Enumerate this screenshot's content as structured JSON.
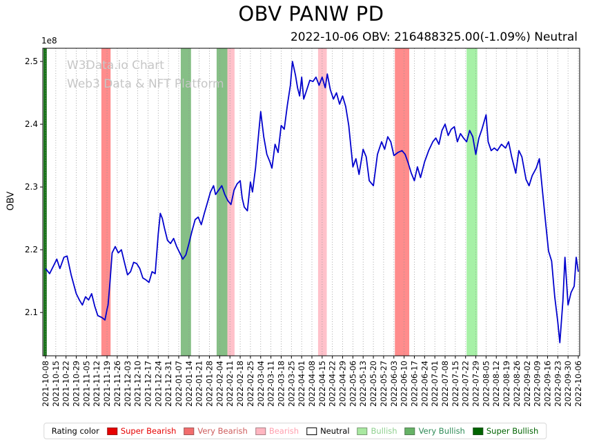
{
  "watermark": {
    "line1": "W3Data.io Chart",
    "line2": "Web3 Data & NFT Platform"
  },
  "chart_data": {
    "type": "line",
    "title": "OBV PANW PD",
    "subtitle": "2022-10-06 OBV: 216488325.00(-1.09%) Neutral",
    "ylabel": "OBV",
    "y_offset_label": "1e8",
    "unit_multiplier": 100000000,
    "ylim_1e8": [
      2.031,
      2.521
    ],
    "y_ticks": [
      2.1,
      2.2,
      2.3,
      2.4,
      2.5
    ],
    "grid": "vertical-dotted",
    "line_color": "#0000cd",
    "x_tick_labels": [
      "2021-10-08",
      "2021-10-15",
      "2021-10-22",
      "2021-10-29",
      "2021-11-05",
      "2021-11-12",
      "2021-11-19",
      "2021-11-26",
      "2021-12-03",
      "2021-12-10",
      "2021-12-17",
      "2021-12-24",
      "2021-12-31",
      "2022-01-07",
      "2022-01-14",
      "2022-01-21",
      "2022-01-28",
      "2022-02-04",
      "2022-02-11",
      "2022-02-18",
      "2022-02-25",
      "2022-03-04",
      "2022-03-11",
      "2022-03-18",
      "2022-03-25",
      "2022-04-01",
      "2022-04-08",
      "2022-04-15",
      "2022-04-22",
      "2022-04-29",
      "2022-05-06",
      "2022-05-13",
      "2022-05-20",
      "2022-05-27",
      "2022-06-03",
      "2022-06-10",
      "2022-06-17",
      "2022-06-24",
      "2022-07-01",
      "2022-07-08",
      "2022-07-15",
      "2022-07-22",
      "2022-07-29",
      "2022-08-05",
      "2022-08-12",
      "2022-08-19",
      "2022-08-26",
      "2022-09-02",
      "2022-09-09",
      "2022-09-16",
      "2022-09-23",
      "2022-09-30",
      "2022-10-06"
    ],
    "series": [
      {
        "name": "OBV",
        "points_week_value_1e8": [
          [
            0,
            2.17
          ],
          [
            0.4,
            2.162
          ],
          [
            0.8,
            2.175
          ],
          [
            1.1,
            2.185
          ],
          [
            1.4,
            2.17
          ],
          [
            1.8,
            2.188
          ],
          [
            2.1,
            2.19
          ],
          [
            2.5,
            2.16
          ],
          [
            3.0,
            2.13
          ],
          [
            3.3,
            2.12
          ],
          [
            3.6,
            2.112
          ],
          [
            3.9,
            2.125
          ],
          [
            4.2,
            2.12
          ],
          [
            4.5,
            2.13
          ],
          [
            4.8,
            2.11
          ],
          [
            5.1,
            2.095
          ],
          [
            5.5,
            2.092
          ],
          [
            5.8,
            2.088
          ],
          [
            6.0,
            2.105
          ],
          [
            6.1,
            2.112
          ],
          [
            6.3,
            2.15
          ],
          [
            6.5,
            2.195
          ],
          [
            6.8,
            2.205
          ],
          [
            7.1,
            2.195
          ],
          [
            7.4,
            2.2
          ],
          [
            7.7,
            2.18
          ],
          [
            8.0,
            2.16
          ],
          [
            8.3,
            2.165
          ],
          [
            8.6,
            2.18
          ],
          [
            8.9,
            2.178
          ],
          [
            9.2,
            2.17
          ],
          [
            9.5,
            2.155
          ],
          [
            9.8,
            2.152
          ],
          [
            10.1,
            2.148
          ],
          [
            10.4,
            2.165
          ],
          [
            10.7,
            2.162
          ],
          [
            11.0,
            2.225
          ],
          [
            11.2,
            2.258
          ],
          [
            11.4,
            2.25
          ],
          [
            11.6,
            2.235
          ],
          [
            11.9,
            2.215
          ],
          [
            12.2,
            2.21
          ],
          [
            12.5,
            2.218
          ],
          [
            12.8,
            2.205
          ],
          [
            13.1,
            2.195
          ],
          [
            13.4,
            2.185
          ],
          [
            13.7,
            2.192
          ],
          [
            14.0,
            2.21
          ],
          [
            14.3,
            2.23
          ],
          [
            14.6,
            2.248
          ],
          [
            14.9,
            2.252
          ],
          [
            15.2,
            2.24
          ],
          [
            15.5,
            2.258
          ],
          [
            15.8,
            2.275
          ],
          [
            16.1,
            2.292
          ],
          [
            16.4,
            2.302
          ],
          [
            16.6,
            2.288
          ],
          [
            16.9,
            2.295
          ],
          [
            17.2,
            2.302
          ],
          [
            17.5,
            2.288
          ],
          [
            17.8,
            2.278
          ],
          [
            18.1,
            2.272
          ],
          [
            18.4,
            2.295
          ],
          [
            18.7,
            2.305
          ],
          [
            19.0,
            2.31
          ],
          [
            19.2,
            2.282
          ],
          [
            19.4,
            2.268
          ],
          [
            19.7,
            2.262
          ],
          [
            20.0,
            2.308
          ],
          [
            20.2,
            2.292
          ],
          [
            20.5,
            2.33
          ],
          [
            20.8,
            2.385
          ],
          [
            21.0,
            2.42
          ],
          [
            21.3,
            2.38
          ],
          [
            21.6,
            2.352
          ],
          [
            21.9,
            2.34
          ],
          [
            22.1,
            2.33
          ],
          [
            22.4,
            2.368
          ],
          [
            22.7,
            2.355
          ],
          [
            23.0,
            2.398
          ],
          [
            23.3,
            2.392
          ],
          [
            23.6,
            2.43
          ],
          [
            23.9,
            2.462
          ],
          [
            24.1,
            2.5
          ],
          [
            24.4,
            2.478
          ],
          [
            24.6,
            2.458
          ],
          [
            24.8,
            2.445
          ],
          [
            25.0,
            2.475
          ],
          [
            25.2,
            2.44
          ],
          [
            25.5,
            2.455
          ],
          [
            25.8,
            2.47
          ],
          [
            26.1,
            2.468
          ],
          [
            26.4,
            2.475
          ],
          [
            26.7,
            2.462
          ],
          [
            27.0,
            2.475
          ],
          [
            27.3,
            2.458
          ],
          [
            27.5,
            2.48
          ],
          [
            27.8,
            2.455
          ],
          [
            28.1,
            2.44
          ],
          [
            28.4,
            2.45
          ],
          [
            28.7,
            2.432
          ],
          [
            29.0,
            2.445
          ],
          [
            29.3,
            2.428
          ],
          [
            29.6,
            2.398
          ],
          [
            30.0,
            2.332
          ],
          [
            30.3,
            2.345
          ],
          [
            30.6,
            2.32
          ],
          [
            31.0,
            2.36
          ],
          [
            31.3,
            2.348
          ],
          [
            31.6,
            2.31
          ],
          [
            32.0,
            2.302
          ],
          [
            32.4,
            2.352
          ],
          [
            32.8,
            2.372
          ],
          [
            33.1,
            2.36
          ],
          [
            33.4,
            2.38
          ],
          [
            33.7,
            2.372
          ],
          [
            34.0,
            2.35
          ],
          [
            34.4,
            2.355
          ],
          [
            34.8,
            2.358
          ],
          [
            35.1,
            2.352
          ],
          [
            35.4,
            2.338
          ],
          [
            35.7,
            2.322
          ],
          [
            36.0,
            2.31
          ],
          [
            36.3,
            2.332
          ],
          [
            36.6,
            2.315
          ],
          [
            37.0,
            2.34
          ],
          [
            37.4,
            2.358
          ],
          [
            37.8,
            2.372
          ],
          [
            38.1,
            2.378
          ],
          [
            38.4,
            2.368
          ],
          [
            38.7,
            2.39
          ],
          [
            39.0,
            2.4
          ],
          [
            39.3,
            2.382
          ],
          [
            39.6,
            2.392
          ],
          [
            39.9,
            2.396
          ],
          [
            40.2,
            2.372
          ],
          [
            40.5,
            2.385
          ],
          [
            40.8,
            2.378
          ],
          [
            41.1,
            2.372
          ],
          [
            41.4,
            2.39
          ],
          [
            41.7,
            2.38
          ],
          [
            42.0,
            2.352
          ],
          [
            42.3,
            2.378
          ],
          [
            42.6,
            2.392
          ],
          [
            43.0,
            2.415
          ],
          [
            43.2,
            2.372
          ],
          [
            43.5,
            2.358
          ],
          [
            43.8,
            2.362
          ],
          [
            44.1,
            2.358
          ],
          [
            44.5,
            2.368
          ],
          [
            44.9,
            2.362
          ],
          [
            45.2,
            2.372
          ],
          [
            45.5,
            2.348
          ],
          [
            45.9,
            2.322
          ],
          [
            46.2,
            2.358
          ],
          [
            46.5,
            2.348
          ],
          [
            46.9,
            2.312
          ],
          [
            47.2,
            2.302
          ],
          [
            47.5,
            2.318
          ],
          [
            47.9,
            2.33
          ],
          [
            48.2,
            2.345
          ],
          [
            48.5,
            2.295
          ],
          [
            48.8,
            2.245
          ],
          [
            49.1,
            2.198
          ],
          [
            49.4,
            2.182
          ],
          [
            49.7,
            2.125
          ],
          [
            50.0,
            2.085
          ],
          [
            50.2,
            2.052
          ],
          [
            50.5,
            2.118
          ],
          [
            50.7,
            2.188
          ],
          [
            51.0,
            2.112
          ],
          [
            51.3,
            2.132
          ],
          [
            51.6,
            2.142
          ],
          [
            51.8,
            2.188
          ],
          [
            52.0,
            2.165
          ]
        ]
      }
    ],
    "bands": [
      {
        "rating": "super_bullish",
        "start_week": -0.2,
        "end_week": 0.12
      },
      {
        "rating": "very_bearish",
        "start_week": 5.45,
        "end_week": 6.35
      },
      {
        "rating": "very_bullish",
        "start_week": 13.2,
        "end_week": 14.2
      },
      {
        "rating": "very_bullish",
        "start_week": 16.7,
        "end_week": 17.75
      },
      {
        "rating": "bearish",
        "start_week": 17.75,
        "end_week": 18.45
      },
      {
        "rating": "bearish",
        "start_week": 26.6,
        "end_week": 27.45
      },
      {
        "rating": "very_bearish",
        "start_week": 34.1,
        "end_week": 35.5
      },
      {
        "rating": "bullish",
        "start_week": 41.1,
        "end_week": 42.15
      }
    ],
    "band_colors": {
      "super_bearish": {
        "fill": "#e60000",
        "opacity": 0.9
      },
      "very_bearish": {
        "fill": "#ff1a1a",
        "opacity": 0.5
      },
      "bearish": {
        "fill": "#ffb6c1",
        "opacity": 0.85
      },
      "bullish": {
        "fill": "#90ee90",
        "opacity": 0.8
      },
      "very_bullish": {
        "fill": "#228b22",
        "opacity": 0.55
      },
      "super_bullish": {
        "fill": "#006400",
        "opacity": 0.9
      }
    },
    "legend": {
      "label": "Rating color",
      "items": [
        {
          "label": "Super Bearish",
          "color": "#e60000",
          "text_color": "#e60000"
        },
        {
          "label": "Very Bearish",
          "color": "#f26d6d",
          "text_color": "#cd5c5c"
        },
        {
          "label": "Bearish",
          "color": "#ffb6c1",
          "text_color": "#ff9fae"
        },
        {
          "label": "Neutral",
          "color": "#ffffff",
          "text_color": "#000000"
        },
        {
          "label": "Bullish",
          "color": "#a9e8a1",
          "text_color": "#8fd08f"
        },
        {
          "label": "Very Bullish",
          "color": "#66b266",
          "text_color": "#2e8b57"
        },
        {
          "label": "Super Bullish",
          "color": "#006400",
          "text_color": "#006400"
        }
      ]
    }
  }
}
